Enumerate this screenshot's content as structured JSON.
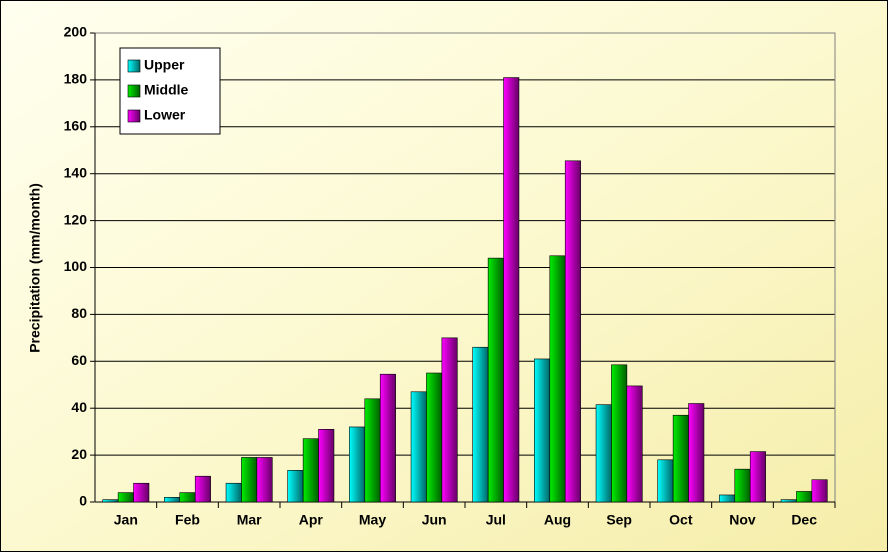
{
  "chart_data": {
    "type": "bar",
    "y_label": "Precipitation (mm/month)",
    "categories": [
      "Jan",
      "Feb",
      "Mar",
      "Apr",
      "May",
      "Jun",
      "Jul",
      "Aug",
      "Sep",
      "Oct",
      "Nov",
      "Dec"
    ],
    "series": [
      {
        "name": "Upper",
        "color": "#00ffff",
        "values": [
          1,
          2,
          8,
          13.5,
          32,
          47,
          66,
          61,
          41.5,
          18,
          3,
          1
        ]
      },
      {
        "name": "Middle",
        "color": "#00ee00",
        "values": [
          4,
          4,
          19,
          27,
          44,
          55,
          104,
          105,
          58.5,
          37,
          14,
          4.5
        ]
      },
      {
        "name": "Lower",
        "color": "#ff00ff",
        "values": [
          8,
          11,
          19,
          31,
          54.5,
          70,
          181,
          145.5,
          49.5,
          42,
          21.5,
          9.5
        ]
      }
    ],
    "ylim": [
      0,
      200
    ],
    "yticks": [
      0,
      20,
      40,
      60,
      80,
      100,
      120,
      140,
      160,
      180,
      200
    ],
    "grid": true,
    "legend": "upper left"
  }
}
